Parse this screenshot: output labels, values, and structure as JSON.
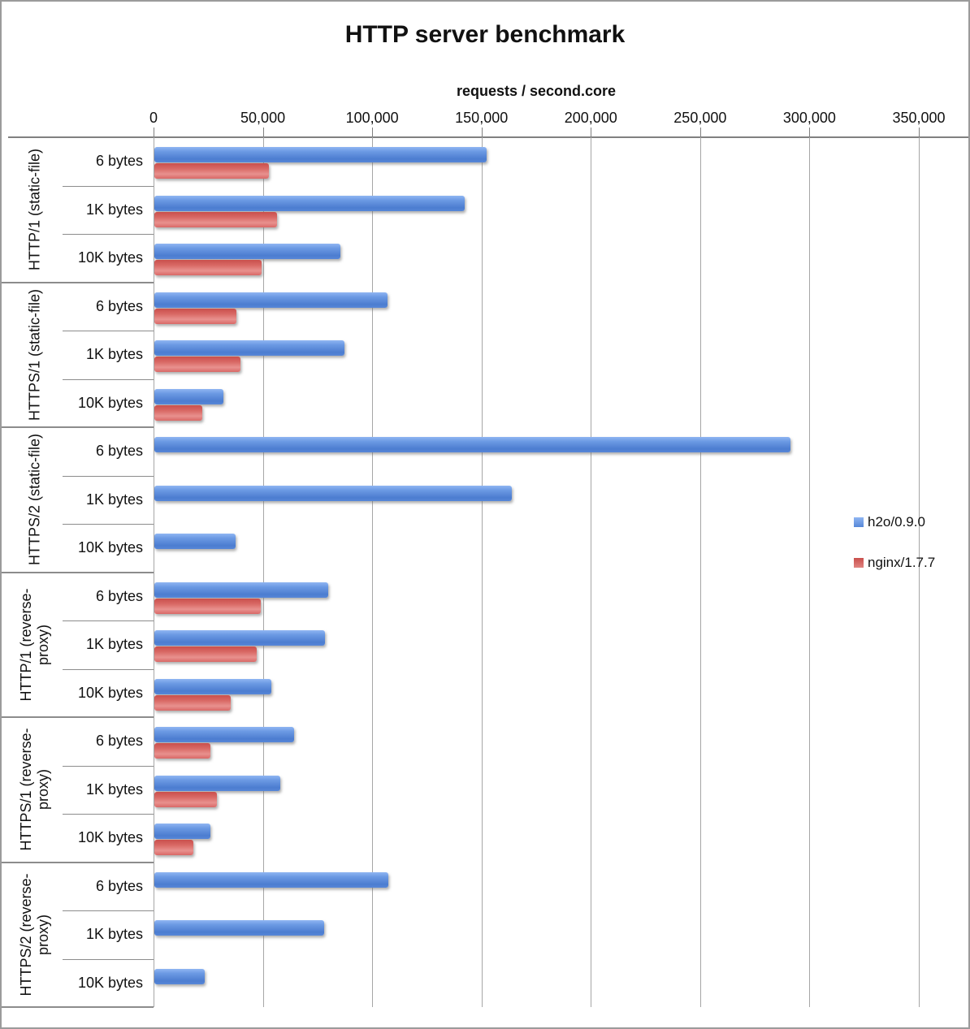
{
  "chart_data": {
    "type": "bar",
    "orientation": "horizontal",
    "title": "HTTP server benchmark",
    "xlabel": "requests / second.core",
    "xlim": [
      0,
      350000
    ],
    "xticks": [
      0,
      50000,
      100000,
      150000,
      200000,
      250000,
      300000,
      350000
    ],
    "xtick_labels": [
      "0",
      "50,000",
      "100,000",
      "150,000",
      "200,000",
      "250,000",
      "300,000",
      "350,000"
    ],
    "grid": true,
    "legend": [
      {
        "name": "h2o/0.9.0",
        "color": "#5585d6"
      },
      {
        "name": "nginx/1.7.7",
        "color": "#d65956"
      }
    ],
    "groups": [
      {
        "label": "HTTP/1 (static-file)",
        "rows": [
          {
            "size": "6 bytes",
            "h2o": 152000,
            "nginx": 52500
          },
          {
            "size": "1K bytes",
            "h2o": 142000,
            "nginx": 56000
          },
          {
            "size": "10K bytes",
            "h2o": 85000,
            "nginx": 49000
          }
        ]
      },
      {
        "label": "HTTPS/1 (static-file)",
        "rows": [
          {
            "size": "6 bytes",
            "h2o": 106500,
            "nginx": 37500
          },
          {
            "size": "1K bytes",
            "h2o": 87000,
            "nginx": 39500
          },
          {
            "size": "10K bytes",
            "h2o": 31500,
            "nginx": 22000
          }
        ]
      },
      {
        "label": "HTTPS/2 (static-file)",
        "rows": [
          {
            "size": "6 bytes",
            "h2o": 291000,
            "nginx": null
          },
          {
            "size": "1K bytes",
            "h2o": 163500,
            "nginx": null
          },
          {
            "size": "10K bytes",
            "h2o": 37000,
            "nginx": null
          }
        ]
      },
      {
        "label": "HTTP/1 (reverse-proxy)",
        "rows": [
          {
            "size": "6 bytes",
            "h2o": 79500,
            "nginx": 48500
          },
          {
            "size": "1K bytes",
            "h2o": 78000,
            "nginx": 47000
          },
          {
            "size": "10K bytes",
            "h2o": 53500,
            "nginx": 35000
          }
        ]
      },
      {
        "label": "HTTPS/1 (reverse-proxy)",
        "rows": [
          {
            "size": "6 bytes",
            "h2o": 64000,
            "nginx": 25500
          },
          {
            "size": "1K bytes",
            "h2o": 57500,
            "nginx": 28500
          },
          {
            "size": "10K bytes",
            "h2o": 25500,
            "nginx": 18000
          }
        ]
      },
      {
        "label": "HTTPS/2 (reverse-proxy)",
        "rows": [
          {
            "size": "6 bytes",
            "h2o": 107000,
            "nginx": null
          },
          {
            "size": "1K bytes",
            "h2o": 77500,
            "nginx": null
          },
          {
            "size": "10K bytes",
            "h2o": 23000,
            "nginx": null
          }
        ]
      }
    ]
  }
}
